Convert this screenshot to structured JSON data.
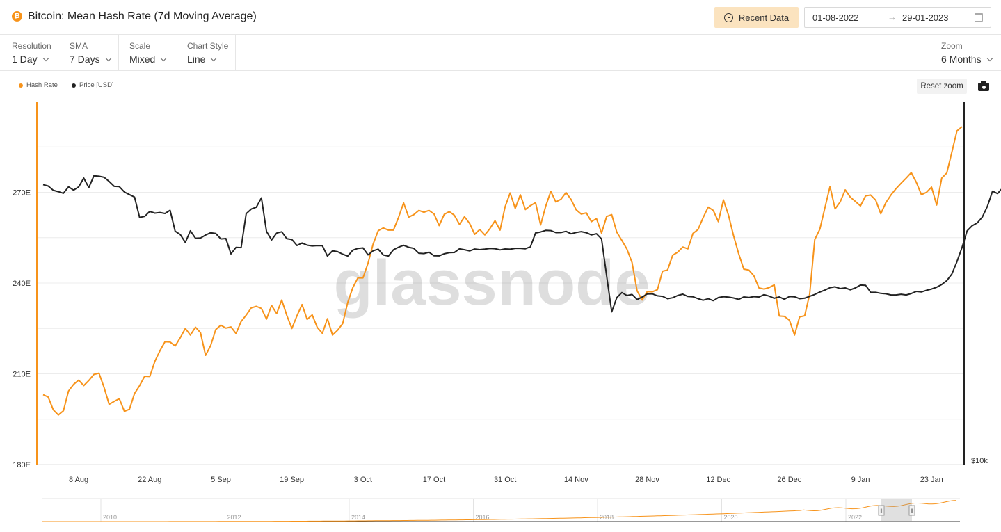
{
  "header": {
    "title": "Bitcoin: Mean Hash Rate (7d Moving Average)",
    "coin_symbol": "₿",
    "recent_button": "Recent Data",
    "date_start": "01-08-2022",
    "date_arrow": "→",
    "date_end": "29-01-2023"
  },
  "toolbar": {
    "resolution": {
      "label": "Resolution",
      "value": "1 Day"
    },
    "sma": {
      "label": "SMA",
      "value": "7 Days"
    },
    "scale": {
      "label": "Scale",
      "value": "Mixed"
    },
    "chart_style": {
      "label": "Chart Style",
      "value": "Line"
    },
    "zoom": {
      "label": "Zoom",
      "value": "6 Months"
    }
  },
  "legend": [
    {
      "name": "Hash Rate",
      "color": "#f7931a"
    },
    {
      "name": "Price [USD]",
      "color": "#222222"
    }
  ],
  "reset_zoom": "Reset zoom",
  "watermark": "glassnode",
  "navigator": {
    "years": [
      "2010",
      "2012",
      "2014",
      "2016",
      "2018",
      "2020",
      "2022"
    ],
    "handle_glyph": "‖"
  },
  "chart_data": {
    "type": "line",
    "title": "Bitcoin: Mean Hash Rate (7d Moving Average)",
    "x_ticks": [
      "8 Aug",
      "22 Aug",
      "5 Sep",
      "19 Sep",
      "3 Oct",
      "17 Oct",
      "31 Oct",
      "14 Nov",
      "28 Nov",
      "12 Dec",
      "26 Dec",
      "9 Jan",
      "23 Jan"
    ],
    "xlim": [
      "2022-08-01",
      "2023-01-29"
    ],
    "left_axis": {
      "ticks": [
        "180E",
        "210E",
        "240E",
        "270E"
      ],
      "range": [
        180,
        300
      ],
      "unit": "EH/s"
    },
    "right_axis": {
      "ticks": [
        "$10k"
      ],
      "scale": "log"
    },
    "grid": true,
    "series": [
      {
        "name": "Hash Rate",
        "axis": "left",
        "color": "#f7931a",
        "x_start": "2022-08-01",
        "step_days": 1,
        "values": [
          203.1,
          202.3,
          198.1,
          196.4,
          197.8,
          204.3,
          206.5,
          207.9,
          206.1,
          207.8,
          209.8,
          210.2,
          205.5,
          199.9,
          200.9,
          201.8,
          197.6,
          198.3,
          203.5,
          206.1,
          209.2,
          209.1,
          214.1,
          217.6,
          220.6,
          220.5,
          219.2,
          221.9,
          225.0,
          222.8,
          225.4,
          223.6,
          216.1,
          219.3,
          224.6,
          226.1,
          225.1,
          225.5,
          223.3,
          227.3,
          229.4,
          231.8,
          232.3,
          231.6,
          228.1,
          232.6,
          229.9,
          234.4,
          229.3,
          225.0,
          229.2,
          232.9,
          228.0,
          229.5,
          225.3,
          223.4,
          228.2,
          222.8,
          224.4,
          226.6,
          233.6,
          238.5,
          241.7,
          241.7,
          246.6,
          252.9,
          257.3,
          258.2,
          257.5,
          257.5,
          261.7,
          266.5,
          261.8,
          262.6,
          264.0,
          263.4,
          264.0,
          262.8,
          259.0,
          262.7,
          263.6,
          262.4,
          259.4,
          261.9,
          259.7,
          256.1,
          257.7,
          255.9,
          258.0,
          260.6,
          257.5,
          265.2,
          269.8,
          264.7,
          269.2,
          264.3,
          265.6,
          266.6,
          259.2,
          265.4,
          270.3,
          266.8,
          267.7,
          269.9,
          267.6,
          264.2,
          262.8,
          263.2,
          260.3,
          261.3,
          256.5,
          262.0,
          262.6,
          256.8,
          254.1,
          251.2,
          246.8,
          237.4,
          234.4,
          237.2,
          237.1,
          237.8,
          243.9,
          244.3,
          249.2,
          250.2,
          251.9,
          251.3,
          256.4,
          257.7,
          261.6,
          265.1,
          264.0,
          260.3,
          267.5,
          262.4,
          255.6,
          249.7,
          244.6,
          244.3,
          242.4,
          238.4,
          238.0,
          238.5,
          239.4,
          229.1,
          229.0,
          227.7,
          222.8,
          228.8,
          229.2,
          236.4,
          254.4,
          257.8,
          264.9,
          271.9,
          264.5,
          266.8,
          270.8,
          268.4,
          267.0,
          265.5,
          268.8,
          269.1,
          267.4,
          262.9,
          266.6,
          269.1,
          271.2,
          273.0,
          274.7,
          276.5,
          273.3,
          269.2,
          270.0,
          271.7,
          265.8,
          274.7,
          276.4,
          283.3,
          290.3,
          291.7
        ]
      },
      {
        "name": "Price [USD]",
        "axis": "right",
        "color": "#222222",
        "x_start": "2022-08-01",
        "step_days": 1,
        "values": [
          23336,
          23230,
          22935,
          22837,
          22726,
          23175,
          22942,
          23170,
          23799,
          23126,
          23964,
          23929,
          23853,
          23557,
          23212,
          23193,
          22812,
          22635,
          22466,
          21125,
          21190,
          21514,
          21400,
          21440,
          21378,
          21584,
          20261,
          20061,
          19587,
          20288,
          19833,
          19848,
          20026,
          20167,
          20123,
          19792,
          19819,
          18923,
          19295,
          19281,
          21366,
          21666,
          21792,
          22415,
          20250,
          19736,
          20145,
          20227,
          19805,
          19761,
          19405,
          19552,
          19424,
          19380,
          19402,
          19392,
          18794,
          19097,
          19046,
          18901,
          18795,
          19134,
          19236,
          19262,
          18860,
          19097,
          19191,
          18856,
          18794,
          19159,
          19304,
          19416,
          19299,
          19238,
          18956,
          18938,
          19019,
          18809,
          18808,
          18924,
          18988,
          19000,
          19209,
          19156,
          19090,
          19197,
          19162,
          19193,
          19233,
          19218,
          19149,
          19203,
          19184,
          19238,
          19240,
          19213,
          19330,
          20156,
          20212,
          20310,
          20301,
          20176,
          20181,
          20253,
          20102,
          20184,
          20236,
          20170,
          20034,
          20106,
          19793,
          17695,
          15875,
          16570,
          16830,
          16678,
          16734,
          16479,
          16604,
          16758,
          16765,
          16663,
          16637,
          16520,
          16565,
          16679,
          16747,
          16631,
          16616,
          16521,
          16444,
          16516,
          16422,
          16574,
          16620,
          16599,
          16555,
          16486,
          16605,
          16580,
          16625,
          16604,
          16721,
          16647,
          16542,
          16606,
          16493,
          16628,
          16617,
          16521,
          16545,
          16637,
          16732,
          16858,
          16958,
          17082,
          17124,
          17030,
          17069,
          16969,
          17066,
          17215,
          17203,
          16845,
          16840,
          16790,
          16768,
          16710,
          16708,
          16745,
          16707,
          16778,
          16888,
          16861,
          16944,
          17010,
          17104,
          17245,
          17450,
          17800,
          18480,
          19290,
          20280,
          20600,
          20780,
          21150,
          21850,
          22870,
          22710,
          23104,
          23140,
          23002,
          22950,
          23600,
          23510,
          23010
        ]
      }
    ]
  }
}
